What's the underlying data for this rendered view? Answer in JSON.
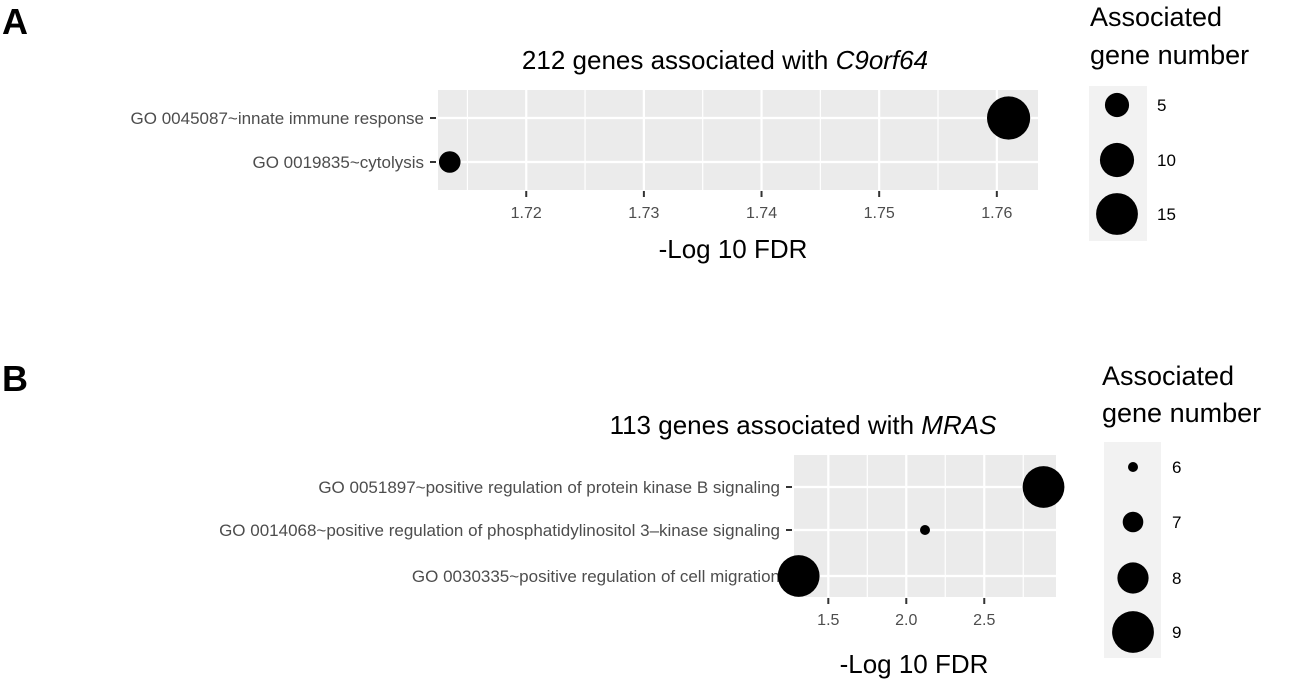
{
  "panels": [
    {
      "letter": "A",
      "title_prefix": "212 genes associated with ",
      "title_gene": "C9orf64",
      "legend": {
        "title_line1": "Associated",
        "title_line2": "gene number",
        "sizes": [
          5,
          10,
          15
        ]
      }
    },
    {
      "letter": "B",
      "title_prefix": "113 genes associated with ",
      "title_gene": "MRAS",
      "legend": {
        "title_line1": "Associated",
        "title_line2": "gene number",
        "sizes": [
          6,
          7,
          8,
          9
        ]
      }
    }
  ],
  "chart_data": [
    {
      "type": "scatter",
      "title": "212 genes associated with C9orf64",
      "xlabel": "-Log 10 FDR",
      "ylabel": "",
      "xlim": [
        1.7125,
        1.7635
      ],
      "xticks": [
        "1.72",
        "1.73",
        "1.74",
        "1.75",
        "1.76"
      ],
      "xtick_values": [
        1.72,
        1.73,
        1.74,
        1.75,
        1.76
      ],
      "categories": [
        "GO 0045087~innate immune response",
        "GO 0019835~cytolysis"
      ],
      "x": [
        1.761,
        1.7135
      ],
      "size": [
        16,
        4
      ],
      "grid": true,
      "legend_position": "right"
    },
    {
      "type": "scatter",
      "title": "113 genes associated with MRAS",
      "xlabel": "-Log 10 FDR",
      "ylabel": "",
      "xlim": [
        1.28,
        2.96
      ],
      "xticks": [
        "1.5",
        "2.0",
        "2.5"
      ],
      "xtick_values": [
        1.5,
        2.0,
        2.5
      ],
      "categories": [
        "GO 0051897~positive regulation of protein kinase B signaling",
        "GO 0014068~positive regulation of phosphatidylinositol 3–kinase signaling",
        "GO 0030335~positive regulation of cell migration"
      ],
      "x": [
        2.88,
        2.12,
        1.31
      ],
      "size": [
        9,
        6,
        9
      ],
      "grid": true,
      "legend_position": "right"
    }
  ]
}
